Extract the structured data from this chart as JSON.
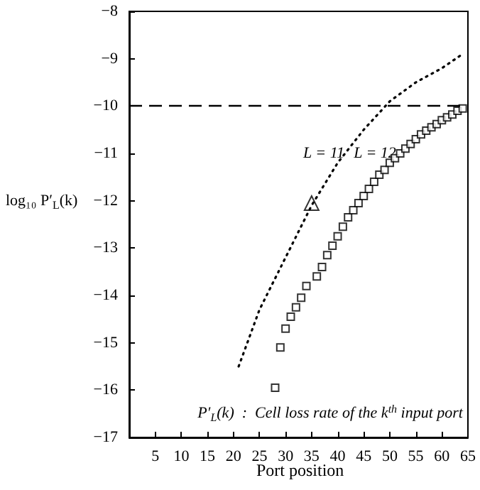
{
  "chart_data": {
    "type": "line",
    "xlabel": "Port position",
    "ylabel": "log₁₀ P′$_{L}$(k)",
    "xlim": [
      0,
      65
    ],
    "xticks": [
      5,
      10,
      15,
      20,
      25,
      30,
      35,
      40,
      45,
      50,
      55,
      60,
      65
    ],
    "ylim": [
      -17,
      -8
    ],
    "yticks": [
      -17,
      -16,
      -15,
      -14,
      -13,
      -12,
      -11,
      -10,
      -9,
      -8
    ],
    "grid": false,
    "ref_lines": [
      {
        "axis": "y",
        "value": -10,
        "line_style": "dashed",
        "color": "#000000"
      }
    ],
    "series": [
      {
        "line_style": "dotted",
        "marker": "none",
        "color": "#000000",
        "x": [
          21,
          25,
          30,
          35,
          40,
          45,
          50,
          55,
          60,
          64
        ],
        "values": [
          -15.5,
          -14.3,
          -13.2,
          -12.1,
          -11.2,
          -10.5,
          -9.9,
          -9.5,
          -9.2,
          -8.9
        ]
      },
      {
        "type": "scatter",
        "marker": "square",
        "color": "#000000",
        "x": [
          28,
          29,
          30,
          31,
          32,
          33,
          34,
          36,
          37,
          38,
          39,
          40,
          41,
          42,
          43,
          44,
          45,
          46,
          47,
          48,
          49,
          50,
          51,
          52,
          53,
          54,
          55,
          56,
          57,
          58,
          59,
          60,
          61,
          62,
          63,
          64
        ],
        "values": [
          -15.95,
          -15.1,
          -14.7,
          -14.45,
          -14.25,
          -14.05,
          -13.8,
          -13.6,
          -13.4,
          -13.15,
          -12.95,
          -12.75,
          -12.55,
          -12.35,
          -12.2,
          -12.05,
          -11.9,
          -11.75,
          -11.6,
          -11.45,
          -11.35,
          -11.2,
          -11.1,
          -11.0,
          -10.9,
          -10.8,
          -10.7,
          -10.6,
          -10.52,
          -10.45,
          -10.38,
          -10.3,
          -10.24,
          -10.18,
          -10.1,
          -10.05
        ]
      },
      {
        "type": "scatter",
        "marker": "triangle",
        "color": "#000000",
        "x": [
          35
        ],
        "values": [
          -12.05
        ]
      }
    ],
    "annotations": [
      "L = 11",
      "L = 12",
      "P′$_{L}$(k)  :  Cell loss rate of the k$^{th}$ input port"
    ]
  }
}
